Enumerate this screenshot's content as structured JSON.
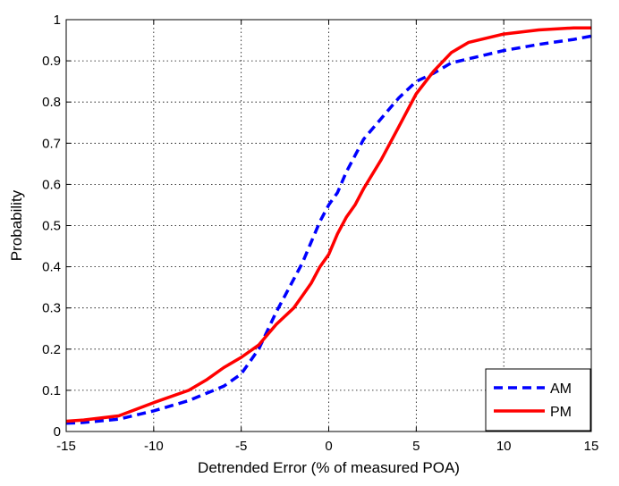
{
  "chart_data": {
    "type": "line",
    "xlabel": "Detrended Error (% of measured POA)",
    "ylabel": "Probability",
    "xlim": [
      -15,
      15
    ],
    "ylim": [
      0,
      1
    ],
    "xticks": [
      -15,
      -10,
      -5,
      0,
      5,
      10,
      15
    ],
    "yticks": [
      0,
      0.1,
      0.2,
      0.3,
      0.4,
      0.5,
      0.6,
      0.7,
      0.8,
      0.9,
      1
    ],
    "xtick_labels": [
      "-15",
      "-10",
      "-5",
      "0",
      "5",
      "10",
      "15"
    ],
    "ytick_labels": [
      "0",
      "0.1",
      "0.2",
      "0.3",
      "0.4",
      "0.5",
      "0.6",
      "0.7",
      "0.8",
      "0.9",
      "1"
    ],
    "grid": true,
    "legend_position": "bottom-right",
    "series": [
      {
        "name": "AM",
        "color": "#0000ff",
        "style": "dashed",
        "x": [
          -15,
          -14,
          -12,
          -10,
          -8,
          -6,
          -5,
          -4,
          -3,
          -2.5,
          -2,
          -1.5,
          -1,
          -0.5,
          0,
          0.5,
          1,
          1.5,
          2,
          3,
          4,
          5,
          6,
          7,
          8,
          10,
          12,
          14,
          15
        ],
        "y": [
          0.02,
          0.022,
          0.03,
          0.05,
          0.075,
          0.11,
          0.14,
          0.2,
          0.29,
          0.33,
          0.37,
          0.41,
          0.46,
          0.51,
          0.55,
          0.58,
          0.63,
          0.67,
          0.71,
          0.76,
          0.81,
          0.85,
          0.87,
          0.895,
          0.905,
          0.925,
          0.94,
          0.952,
          0.96
        ]
      },
      {
        "name": "PM",
        "color": "#ff0000",
        "style": "solid",
        "x": [
          -15,
          -14,
          -12,
          -10,
          -8,
          -7,
          -6,
          -5,
          -4,
          -3,
          -2,
          -1.5,
          -1,
          -0.5,
          0,
          0.5,
          1,
          1.5,
          2,
          3,
          4,
          5,
          6,
          7,
          8,
          10,
          12,
          14,
          15
        ],
        "y": [
          0.025,
          0.028,
          0.038,
          0.07,
          0.1,
          0.125,
          0.155,
          0.18,
          0.21,
          0.26,
          0.3,
          0.33,
          0.36,
          0.4,
          0.43,
          0.48,
          0.52,
          0.55,
          0.59,
          0.66,
          0.74,
          0.82,
          0.875,
          0.92,
          0.945,
          0.965,
          0.975,
          0.98,
          0.98
        ]
      }
    ]
  }
}
